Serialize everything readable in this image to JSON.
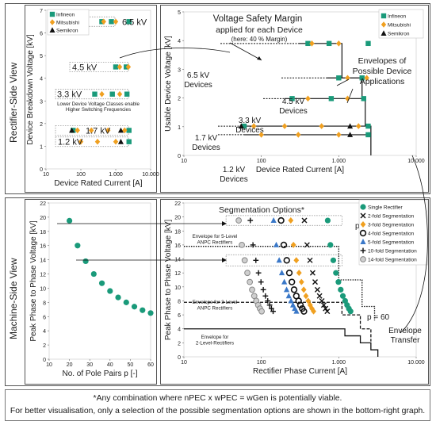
{
  "view_labels": {
    "top": "Rectifier-Side View",
    "bottom": "Machine-Side View"
  },
  "colors": {
    "infineon": "#1a9a7a",
    "mitsubishi": "#f0a020",
    "semikron": "#111111",
    "accent": "#1a9a7a"
  },
  "footnote": {
    "line1": "*Any combination where nPEC x wPEC = wGen is potentially viable.",
    "line2": "For better visualisation, only a selection of the possible segmentation options are shown in the bottom-right graph."
  },
  "chart_data": [
    {
      "type": "scatter",
      "xlabel": "Device Rated Current [A]",
      "ylabel": "Device Breakdown Voltage [kV]",
      "xscale": "log",
      "xlim": [
        10,
        10000
      ],
      "ylim": [
        0,
        7
      ],
      "xticks": [
        "10",
        "100",
        "1.000",
        "10.000"
      ],
      "yticks": [
        "0",
        "1",
        "2",
        "3",
        "4",
        "5",
        "6",
        "7"
      ],
      "legend": [
        "Infineon",
        "Mitsubishi",
        "Semikron"
      ],
      "annotations": [
        "6.5 kV",
        "4.5 kV",
        "3.3 kV",
        "1.7 kV",
        "1.2 kV",
        "Lower Device Voltage Classes enable Higher Switching Frequencies"
      ],
      "series": [
        {
          "name": "Infineon",
          "points": [
            [
              400,
              6.5
            ],
            [
              750,
              6.5
            ],
            [
              2400,
              6.5
            ],
            [
              1000,
              4.5
            ],
            [
              2000,
              4.5
            ],
            [
              250,
              3.3
            ],
            [
              800,
              3.3
            ],
            [
              2100,
              3.3
            ],
            [
              60,
              1.7
            ],
            [
              2400,
              1.7
            ],
            [
              2400,
              1.2
            ]
          ]
        },
        {
          "name": "Mitsubishi",
          "points": [
            [
              450,
              6.5
            ],
            [
              1000,
              6.5
            ],
            [
              1300,
              4.5
            ],
            [
              2300,
              4.5
            ],
            [
              400,
              3.3
            ],
            [
              1300,
              3.3
            ],
            [
              80,
              1.7
            ],
            [
              200,
              1.7
            ],
            [
              600,
              1.7
            ],
            [
              1800,
              1.7
            ],
            [
              100,
              1.2
            ],
            [
              300,
              1.2
            ],
            [
              1000,
              1.2
            ]
          ]
        },
        {
          "name": "Semikron",
          "points": [
            [
              55,
              1.7
            ],
            [
              1400,
              1.7
            ],
            [
              1400,
              1.2
            ]
          ]
        }
      ]
    },
    {
      "type": "scatter",
      "xlabel": "Device Rated Current [A]",
      "ylabel": "Usable Device Voltage [kV]",
      "xscale": "log",
      "xlim": [
        10,
        10000
      ],
      "ylim": [
        0,
        5
      ],
      "xticks": [
        "10",
        "100",
        "1.000",
        "10.000"
      ],
      "yticks": [
        "0",
        "1",
        "2",
        "3",
        "4",
        "5"
      ],
      "legend": [
        "Infineon",
        "Mitsubishi",
        "Semikron"
      ],
      "annotations": [
        "Voltage Safety Margin applied for each Device",
        "(here: 40 % Margin)",
        "Envelopes of Possible Device Applications",
        "6.5 kV Devices",
        "4.5 kV Devices",
        "3.3 kV Devices",
        "1.7 kV Devices",
        "1.2 kV Devices"
      ],
      "series": [
        {
          "name": "Infineon",
          "points": [
            [
              400,
              3.9
            ],
            [
              750,
              3.9
            ],
            [
              2400,
              3.9
            ],
            [
              1000,
              2.7
            ],
            [
              2000,
              2.7
            ],
            [
              250,
              1.98
            ],
            [
              800,
              1.98
            ],
            [
              2100,
              1.98
            ],
            [
              60,
              1.02
            ],
            [
              2400,
              1.02
            ],
            [
              2400,
              0.72
            ]
          ]
        },
        {
          "name": "Mitsubishi",
          "points": [
            [
              450,
              3.9
            ],
            [
              1000,
              3.9
            ],
            [
              1300,
              2.7
            ],
            [
              2300,
              2.7
            ],
            [
              400,
              1.98
            ],
            [
              1300,
              1.98
            ],
            [
              80,
              1.02
            ],
            [
              200,
              1.02
            ],
            [
              600,
              1.02
            ],
            [
              1800,
              1.02
            ],
            [
              100,
              0.72
            ],
            [
              300,
              0.72
            ],
            [
              1000,
              0.72
            ]
          ]
        },
        {
          "name": "Semikron",
          "points": [
            [
              55,
              1.02
            ],
            [
              1400,
              1.02
            ],
            [
              1400,
              0.72
            ]
          ]
        }
      ]
    },
    {
      "type": "scatter",
      "xlabel": "No. of Pole Pairs p [-]",
      "ylabel": "Peak Phase to Phase Voltage [kV]",
      "xlim": [
        10,
        60
      ],
      "ylim": [
        0,
        22
      ],
      "xticks": [
        "10",
        "20",
        "30",
        "40",
        "50",
        "60"
      ],
      "yticks": [
        "0",
        "2",
        "4",
        "6",
        "8",
        "10",
        "12",
        "14",
        "16",
        "18",
        "20",
        "22"
      ],
      "series": [
        {
          "name": "",
          "points": [
            [
              20,
              19.5
            ],
            [
              24,
              16.0
            ],
            [
              28,
              13.8
            ],
            [
              32,
              12.0
            ],
            [
              36,
              10.7
            ],
            [
              40,
              9.6
            ],
            [
              44,
              8.7
            ],
            [
              48,
              8.0
            ],
            [
              52,
              7.4
            ],
            [
              56,
              6.9
            ],
            [
              60,
              6.5
            ]
          ]
        }
      ]
    },
    {
      "type": "scatter",
      "xlabel": "Rectifier Phase Current [A]",
      "ylabel": "Peak Phase to Phase Voltage [kV]",
      "xscale": "log",
      "xlim": [
        10,
        10000
      ],
      "ylim": [
        0,
        22
      ],
      "xticks": [
        "10",
        "100",
        "1.000",
        "10.000"
      ],
      "yticks": [
        "0",
        "2",
        "4",
        "6",
        "8",
        "10",
        "12",
        "14",
        "16",
        "18",
        "20",
        "22"
      ],
      "legend": [
        "Single Rectifier",
        "2-fold Segmentation",
        "3-fold Segmentation",
        "4-fold Segmentation",
        "5-fold Segmentation",
        "10-fold Segmentation",
        "14-fold Segmentation"
      ],
      "annotations": [
        "Segmentation Options*",
        "p = 20",
        "p = 60",
        "Envelope for 5-Level ANPC Rectifiers",
        "Envelope for 3-Level ANPC Rectifiers",
        "Envelope for 2-Level-Rectifiers",
        "Envelope Transfer"
      ],
      "series": [
        {
          "name": "Single Rectifier",
          "points": [
            [
              720,
              19.5
            ],
            [
              780,
              16.0
            ],
            [
              850,
              13.8
            ],
            [
              920,
              12.0
            ],
            [
              990,
              10.7
            ],
            [
              1060,
              9.6
            ],
            [
              1130,
              8.7
            ],
            [
              1210,
              8.0
            ],
            [
              1280,
              7.4
            ],
            [
              1350,
              6.9
            ],
            [
              1420,
              6.5
            ]
          ]
        },
        {
          "name": "2-fold Segmentation",
          "points": [
            [
              360,
              19.5
            ],
            [
              390,
              16.0
            ],
            [
              425,
              13.8
            ],
            [
              460,
              12.0
            ],
            [
              495,
              10.7
            ],
            [
              530,
              9.6
            ],
            [
              565,
              8.7
            ],
            [
              605,
              8.0
            ],
            [
              640,
              7.4
            ],
            [
              675,
              6.9
            ],
            [
              710,
              6.5
            ]
          ]
        },
        {
          "name": "3-fold Segmentation",
          "points": [
            [
              240,
              19.5
            ],
            [
              260,
              16.0
            ],
            [
              283,
              13.8
            ],
            [
              307,
              12.0
            ],
            [
              330,
              10.7
            ],
            [
              353,
              9.6
            ],
            [
              377,
              8.7
            ],
            [
              403,
              8.0
            ],
            [
              427,
              7.4
            ],
            [
              450,
              6.9
            ],
            [
              473,
              6.5
            ]
          ]
        },
        {
          "name": "4-fold Segmentation",
          "points": [
            [
              180,
              19.5
            ],
            [
              195,
              16.0
            ],
            [
              213,
              13.8
            ],
            [
              230,
              12.0
            ],
            [
              248,
              10.7
            ],
            [
              265,
              9.6
            ],
            [
              283,
              8.7
            ],
            [
              303,
              8.0
            ],
            [
              320,
              7.4
            ],
            [
              338,
              6.9
            ],
            [
              355,
              6.5
            ]
          ]
        },
        {
          "name": "5-fold Segmentation",
          "points": [
            [
              144,
              19.5
            ],
            [
              156,
              16.0
            ],
            [
              170,
              13.8
            ],
            [
              184,
              12.0
            ],
            [
              198,
              10.7
            ],
            [
              212,
              9.6
            ],
            [
              226,
              8.7
            ],
            [
              242,
              8.0
            ],
            [
              256,
              7.4
            ],
            [
              270,
              6.9
            ],
            [
              284,
              6.5
            ]
          ]
        },
        {
          "name": "10-fold Segmentation",
          "points": [
            [
              72,
              19.5
            ],
            [
              78,
              16.0
            ],
            [
              85,
              13.8
            ],
            [
              92,
              12.0
            ],
            [
              99,
              10.7
            ],
            [
              106,
              9.6
            ],
            [
              113,
              8.7
            ],
            [
              121,
              8.0
            ],
            [
              128,
              7.4
            ],
            [
              135,
              6.9
            ],
            [
              142,
              6.5
            ]
          ]
        },
        {
          "name": "14-fold Segmentation",
          "points": [
            [
              51,
              19.5
            ],
            [
              56,
              16.0
            ],
            [
              61,
              13.8
            ],
            [
              66,
              12.0
            ],
            [
              71,
              10.7
            ],
            [
              76,
              9.6
            ],
            [
              81,
              8.7
            ],
            [
              86,
              8.0
            ],
            [
              91,
              7.4
            ],
            [
              96,
              6.9
            ],
            [
              101,
              6.5
            ]
          ]
        }
      ]
    }
  ]
}
